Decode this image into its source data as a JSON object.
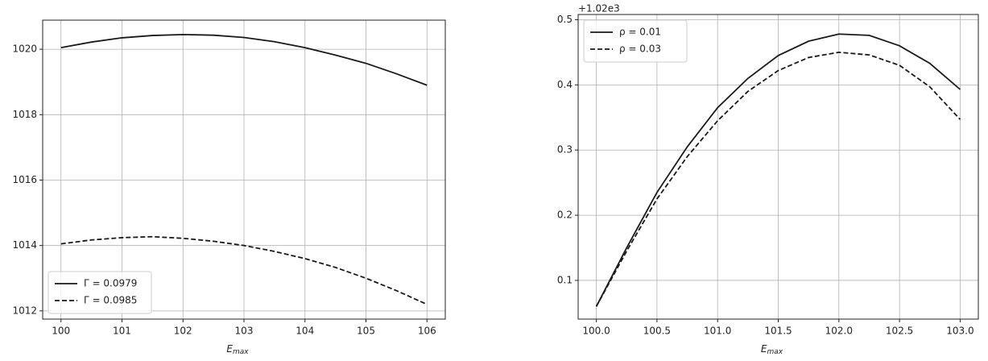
{
  "chart_data": [
    {
      "type": "line",
      "xlabel": "E",
      "xlabel_sub": "max",
      "x": [
        100,
        100.5,
        101,
        101.5,
        102,
        102.5,
        103,
        103.5,
        104,
        104.5,
        105,
        105.5,
        106
      ],
      "series": [
        {
          "name": "Γ = 0.0979",
          "color": "#1a1a1a",
          "dash": "solid",
          "values": [
            1020.05,
            1020.22,
            1020.35,
            1020.42,
            1020.45,
            1020.43,
            1020.36,
            1020.23,
            1020.05,
            1019.82,
            1019.57,
            1019.25,
            1018.9
          ]
        },
        {
          "name": "Γ = 0.0985",
          "color": "#1a1a1a",
          "dash": "dashed",
          "values": [
            1014.05,
            1014.17,
            1014.24,
            1014.27,
            1014.22,
            1014.13,
            1014.0,
            1013.82,
            1013.6,
            1013.33,
            1013.0,
            1012.62,
            1012.2
          ]
        }
      ],
      "xlim": [
        99.7,
        106.3
      ],
      "ylim": [
        1011.75,
        1020.89
      ],
      "xticks": [
        100,
        101,
        102,
        103,
        104,
        105,
        106
      ],
      "yticks": [
        1012,
        1014,
        1016,
        1018,
        1020
      ],
      "grid": true,
      "legend": "lower left"
    },
    {
      "type": "line",
      "xlabel": "E",
      "xlabel_sub": "max",
      "offset_text": "+1.02e3",
      "x": [
        100,
        100.25,
        100.5,
        100.75,
        101,
        101.25,
        101.5,
        101.75,
        102,
        102.25,
        102.5,
        102.75,
        103
      ],
      "series": [
        {
          "name": "ρ = 0.01",
          "color": "#1a1a1a",
          "dash": "solid",
          "values": [
            0.06,
            0.15,
            0.235,
            0.305,
            0.365,
            0.41,
            0.445,
            0.467,
            0.478,
            0.476,
            0.46,
            0.433,
            0.393
          ]
        },
        {
          "name": "ρ = 0.03",
          "color": "#1a1a1a",
          "dash": "dashed",
          "values": [
            0.06,
            0.145,
            0.225,
            0.29,
            0.345,
            0.39,
            0.422,
            0.442,
            0.45,
            0.446,
            0.43,
            0.397,
            0.347
          ]
        }
      ],
      "xlim": [
        99.85,
        103.15
      ],
      "ylim": [
        0.0406,
        0.508
      ],
      "xticks": [
        {
          "value": 100,
          "label": "100.0"
        },
        100.5,
        {
          "value": 101,
          "label": "101.0"
        },
        101.5,
        {
          "value": 102,
          "label": "102.0"
        },
        102.5,
        {
          "value": 103,
          "label": "103.0"
        }
      ],
      "yticks": [
        0.1,
        0.2,
        0.3,
        0.4,
        0.5
      ],
      "grid": true,
      "legend": "upper left"
    }
  ]
}
